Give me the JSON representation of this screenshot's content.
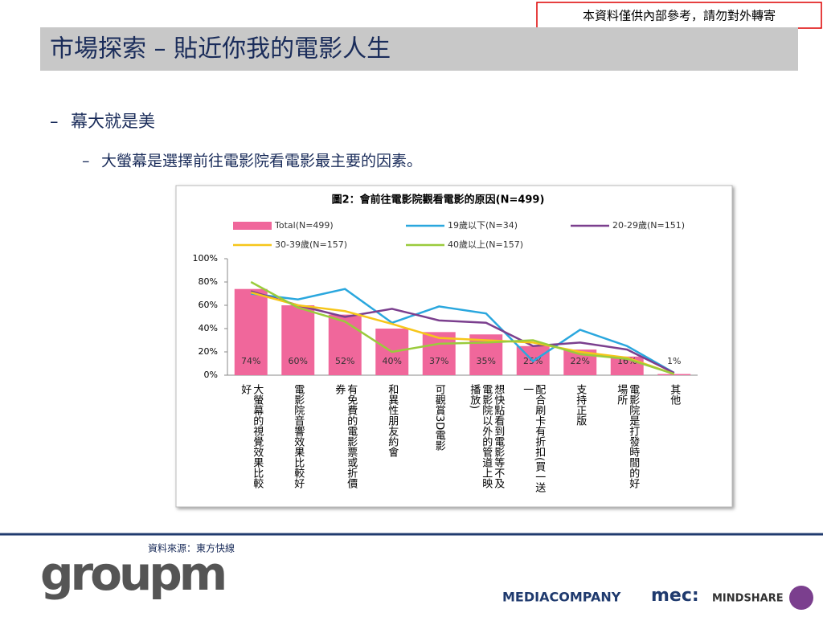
{
  "notice": "本資料僅供內部參考，請勿對外轉寄",
  "title": "市場探索 – 貼近你我的電影人生",
  "bullets": [
    {
      "marker": "–",
      "text": "幕大就是美"
    },
    {
      "marker": "–",
      "text": "大螢幕是選擇前往電影院看電影最主要的因素。"
    }
  ],
  "source": "資料來源：東方快線",
  "logos": {
    "groupm": "groupm",
    "mediacompany": "MEDIACOMPANY",
    "mec": "mec:",
    "mindshare": "MINDSHARE"
  },
  "chart_data": {
    "type": "bar",
    "title": "圖2：會前往電影院觀看電影的原因(N=499)",
    "categories": [
      "大螢幕的視覺效果比較好",
      "電影院音響效果比較好",
      "有免費的電影票或折價券",
      "和異性朋友約會",
      "可觀賞3D電影",
      "想快點看到電影等不及電影院以外的管道上映播放)",
      "配合刷卡有折扣(買一送一",
      "支持正版",
      "電影院是打發時間的好場所",
      "其他"
    ],
    "series": [
      {
        "name": "Total(N=499)",
        "type": "bar",
        "color": "#f0679b",
        "values": [
          74,
          60,
          52,
          40,
          37,
          35,
          25,
          22,
          16,
          1
        ],
        "value_labels": [
          "74%",
          "60%",
          "52%",
          "40%",
          "37%",
          "35%",
          "25%",
          "22%",
          "16%",
          "1%"
        ]
      },
      {
        "name": "19歲以下(N=34)",
        "type": "line",
        "color": "#2aa7de",
        "values": [
          70,
          65,
          74,
          45,
          59,
          53,
          12,
          39,
          25,
          2
        ]
      },
      {
        "name": "20-29歲(N=151)",
        "type": "line",
        "color": "#7b3f8e",
        "values": [
          72,
          60,
          50,
          57,
          47,
          45,
          25,
          28,
          22,
          2
        ]
      },
      {
        "name": "30-39歲(N=157)",
        "type": "line",
        "color": "#f6c61a",
        "values": [
          71,
          60,
          55,
          44,
          32,
          30,
          28,
          20,
          15,
          1
        ]
      },
      {
        "name": "40歲以上(N=157)",
        "type": "line",
        "color": "#9acb3c",
        "values": [
          80,
          58,
          46,
          20,
          27,
          28,
          30,
          18,
          14,
          1
        ]
      }
    ],
    "ylim": [
      0,
      100
    ],
    "yticks": [
      {
        "value": 0,
        "label": "0%"
      },
      {
        "value": 20,
        "label": "20%"
      },
      {
        "value": 40,
        "label": "40%"
      },
      {
        "value": 60,
        "label": "60%"
      },
      {
        "value": 80,
        "label": "80%"
      },
      {
        "value": 100,
        "label": "100%"
      }
    ],
    "grid": false
  }
}
